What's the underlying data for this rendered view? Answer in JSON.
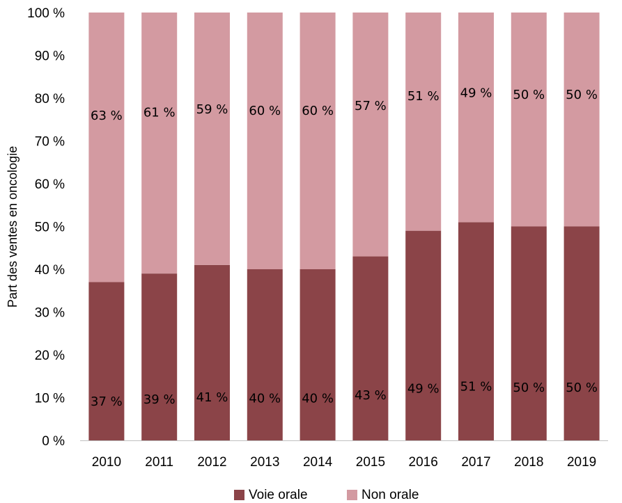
{
  "chart_data": {
    "type": "bar",
    "stacked": true,
    "categories": [
      "2010",
      "2011",
      "2012",
      "2013",
      "2014",
      "2015",
      "2016",
      "2017",
      "2018",
      "2019"
    ],
    "series": [
      {
        "name": "Voie orale",
        "color": "#8b4448",
        "values": [
          37,
          39,
          41,
          40,
          40,
          43,
          49,
          51,
          50,
          50
        ],
        "labels": [
          "37 %",
          "39 %",
          "41 %",
          "40 %",
          "40 %",
          "43 %",
          "49 %",
          "51 %",
          "50 %",
          "50 %"
        ]
      },
      {
        "name": "Non orale",
        "color": "#d39aa1",
        "values": [
          63,
          61,
          59,
          60,
          60,
          57,
          51,
          49,
          50,
          50
        ],
        "labels": [
          "63 %",
          "61 %",
          "59 %",
          "60 %",
          "60 %",
          "57 %",
          "51 %",
          "49 %",
          "50 %",
          "50 %"
        ]
      }
    ],
    "xlabel": "",
    "ylabel": "Part des ventes en oncologie",
    "ylim": [
      0,
      100
    ],
    "yticks": [
      "0 %",
      "10 %",
      "20 %",
      "30 %",
      "40 %",
      "50 %",
      "60 %",
      "70 %",
      "80 %",
      "90 %",
      "100 %"
    ],
    "grid": false,
    "legend": "bottom-center"
  }
}
